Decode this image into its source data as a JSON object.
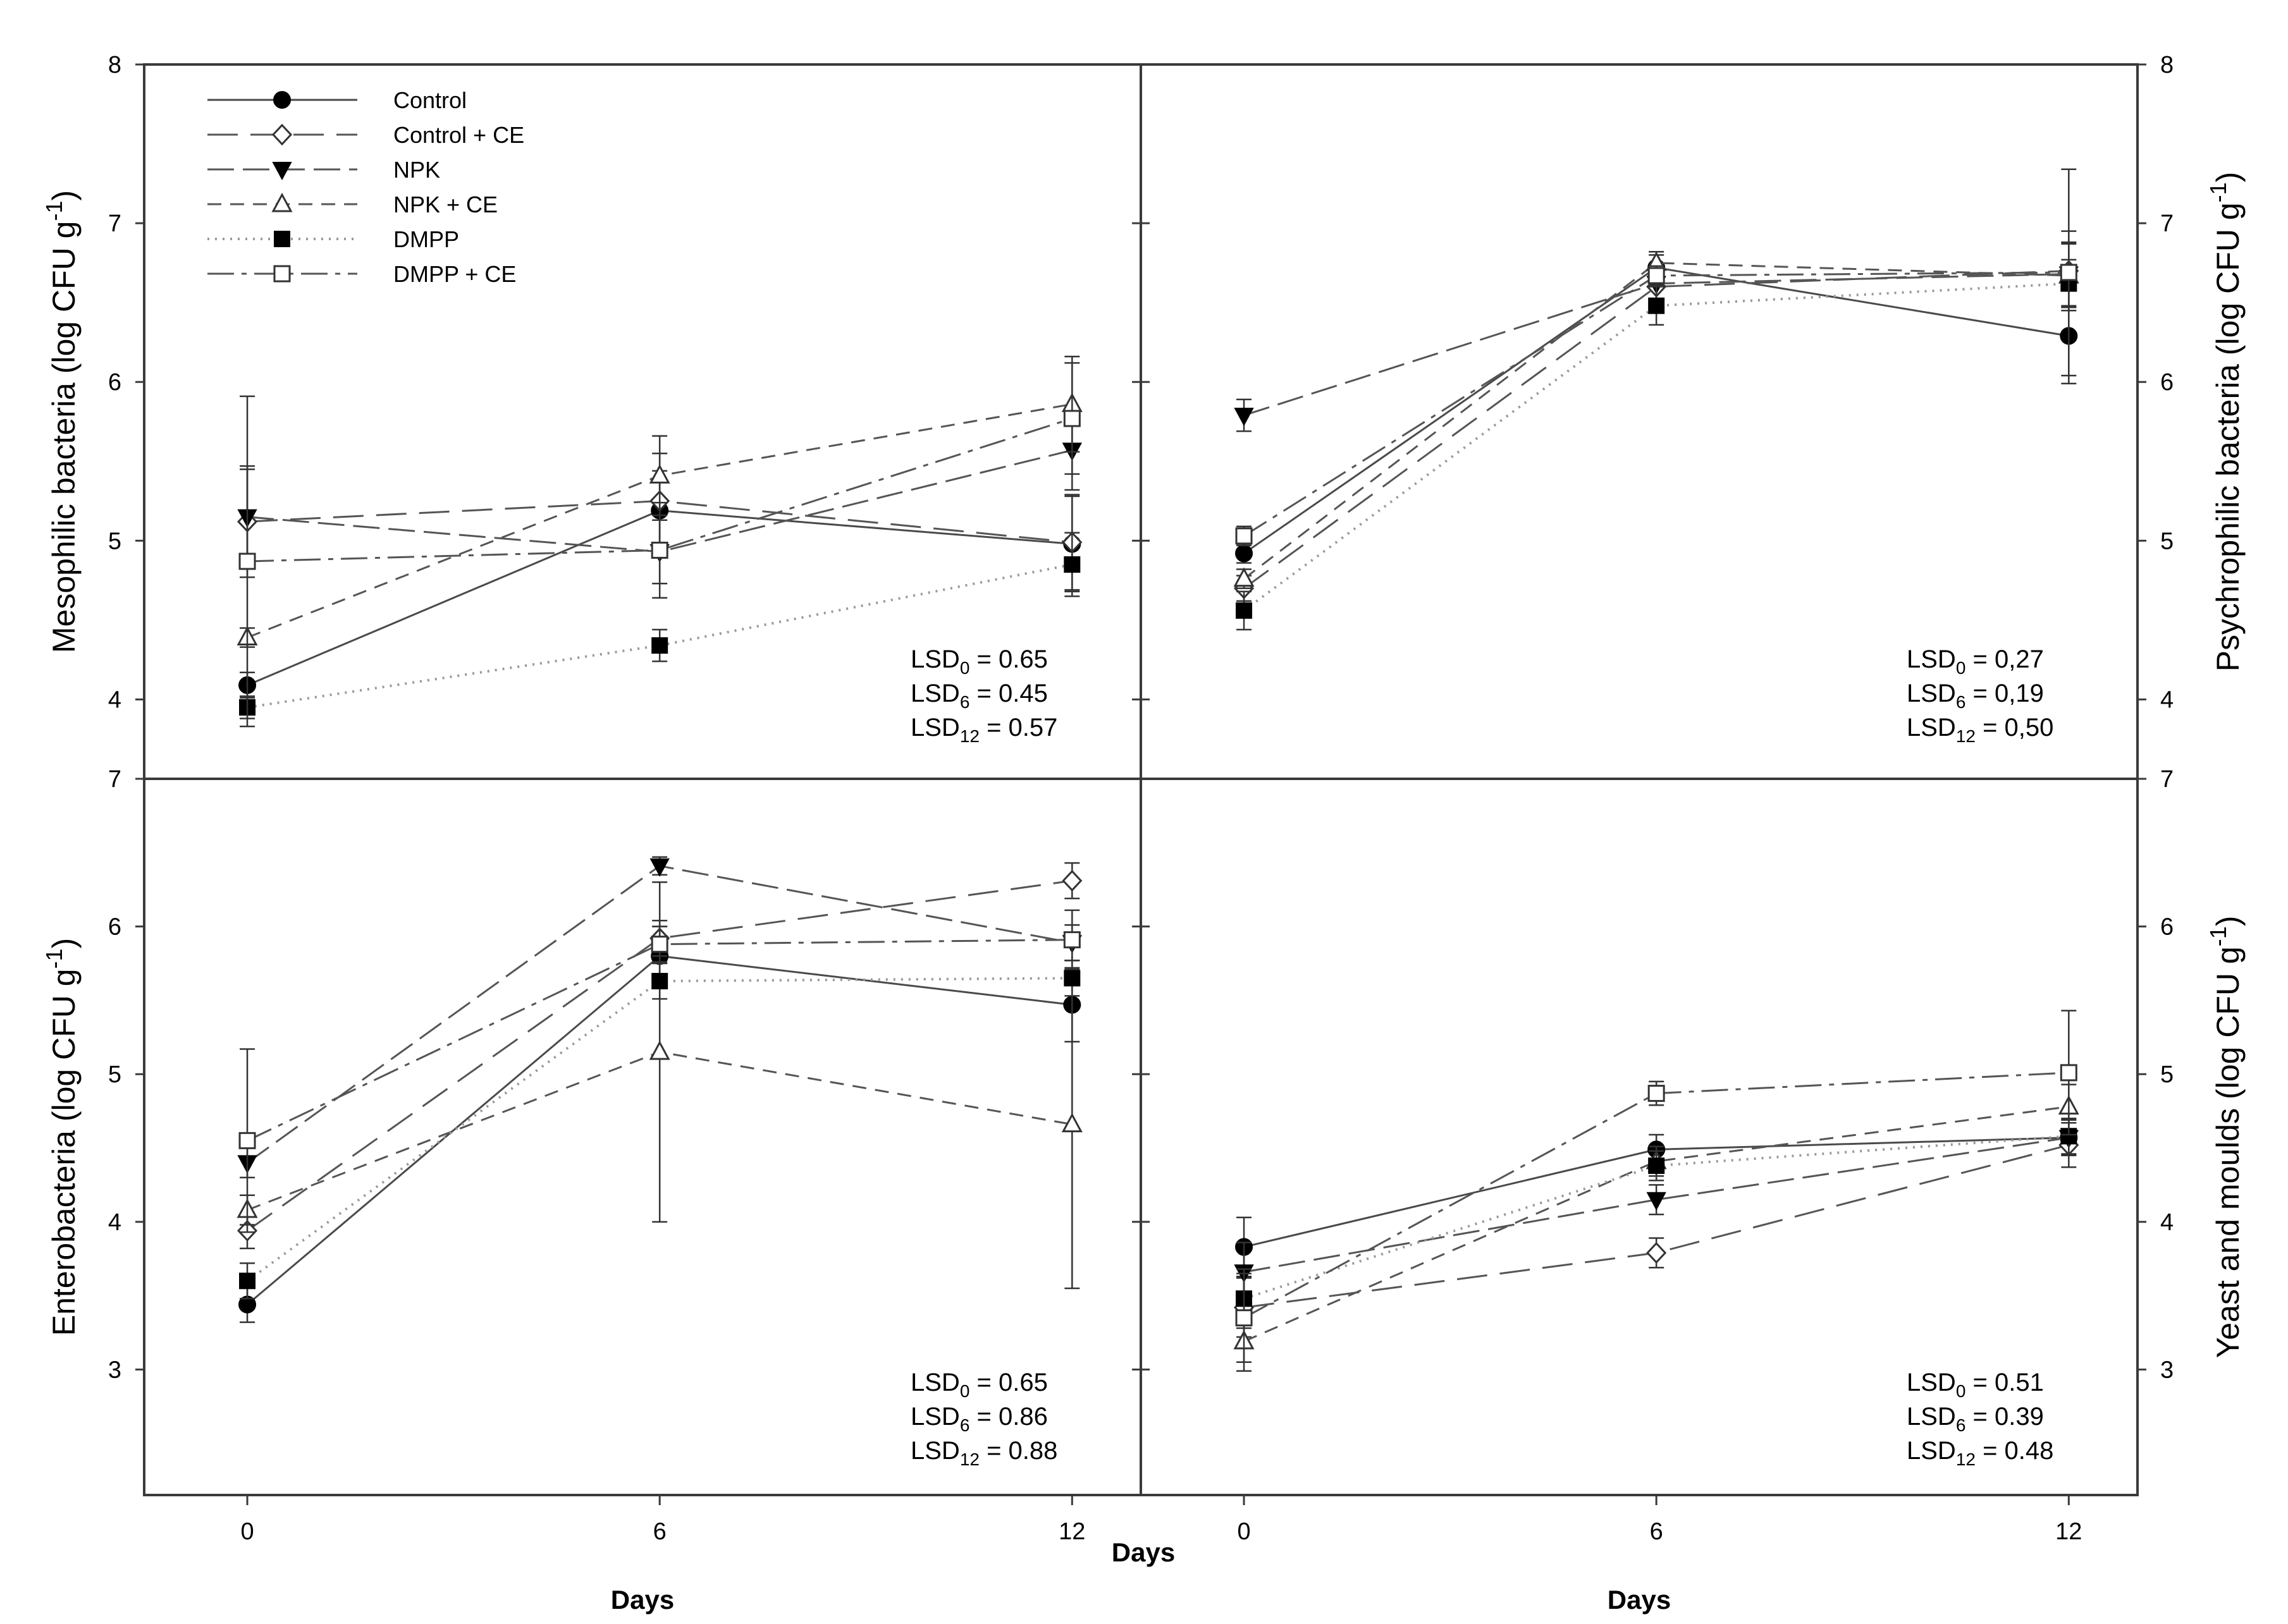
{
  "colors": {
    "ink": "#000000",
    "control": "#4a4a4a",
    "control_ce": "#555555",
    "npk": "#555555",
    "npk_ce": "#555555",
    "dmpp": "#999999",
    "dmpp_ce": "#555555"
  },
  "legend": [
    {
      "key": "control",
      "label": "Control",
      "marker": "circle-filled",
      "dash": ""
    },
    {
      "key": "control_ce",
      "label": "Control + CE",
      "marker": "diamond-open",
      "dash": "48,20"
    },
    {
      "key": "npk",
      "label": "NPK",
      "marker": "tri-down-filled",
      "dash": "42,14"
    },
    {
      "key": "npk_ce",
      "label": "NPK + CE",
      "marker": "tri-up-open",
      "dash": "22,14"
    },
    {
      "key": "dmpp",
      "label": "DMPP",
      "marker": "square-filled",
      "dash": "3,9"
    },
    {
      "key": "dmpp_ce",
      "label": "DMPP + CE",
      "marker": "square-open",
      "dash": "42,12,8,12"
    }
  ],
  "shared_x_title": "Days",
  "chart_data": [
    {
      "id": "mesophilic",
      "type": "line",
      "ylabel": "Mesophilic bacteria (log CFU g",
      "ylabel_sup": "-1",
      "ylabel_close": ")",
      "xlabel": "Days",
      "x": [
        0,
        6,
        12
      ],
      "xlim": [
        -1.5,
        13
      ],
      "ylim": [
        3.5,
        8
      ],
      "yticks": [
        4,
        5,
        6,
        7,
        8
      ],
      "series": [
        {
          "key": "control",
          "values": [
            4.09,
            5.19,
            4.98
          ],
          "err": [
            0.08,
            0.25,
            0.3
          ]
        },
        {
          "key": "control_ce",
          "values": [
            5.12,
            5.25,
            4.99
          ],
          "err": [
            0.35,
            0.3,
            0.3
          ]
        },
        {
          "key": "npk",
          "values": [
            5.15,
            4.93,
            5.57
          ],
          "err": [
            0.3,
            0.2,
            0.25
          ]
        },
        {
          "key": "npk_ce",
          "values": [
            4.39,
            5.41,
            5.86
          ],
          "err": [
            0.06,
            0.25,
            0.3
          ]
        },
        {
          "key": "dmpp",
          "values": [
            3.95,
            4.34,
            4.85
          ],
          "err": [
            0.07,
            0.1,
            0.2
          ]
        },
        {
          "key": "dmpp_ce",
          "values": [
            4.87,
            4.94,
            5.77
          ],
          "err": [
            1.04,
            0.3,
            0.35
          ]
        }
      ],
      "lsd": [
        {
          "sub": "0",
          "value": "= 0.65"
        },
        {
          "sub": "6",
          "value": "= 0.45"
        },
        {
          "sub": "12",
          "value": "= 0.57"
        }
      ]
    },
    {
      "id": "psychrophilic",
      "type": "line",
      "ylabel": "Psychrophilic bacteria (log CFU g",
      "ylabel_sup": "-1",
      "ylabel_close": ")",
      "xlabel": "Days",
      "x": [
        0,
        6,
        12
      ],
      "xlim": [
        -1.5,
        13
      ],
      "ylim": [
        3.5,
        8
      ],
      "yticks": [
        4,
        5,
        6,
        7,
        8
      ],
      "series": [
        {
          "key": "control",
          "values": [
            4.92,
            6.72,
            6.29
          ],
          "err": [
            0.06,
            0.08,
            0.3
          ]
        },
        {
          "key": "control_ce",
          "values": [
            4.7,
            6.6,
            6.7
          ],
          "err": [
            0.08,
            0.1,
            0.25
          ]
        },
        {
          "key": "npk",
          "values": [
            5.79,
            6.62,
            6.68
          ],
          "err": [
            0.1,
            0.1,
            0.2
          ]
        },
        {
          "key": "npk_ce",
          "values": [
            4.76,
            6.75,
            6.67
          ],
          "err": [
            0.06,
            0.07,
            0.2
          ]
        },
        {
          "key": "dmpp",
          "values": [
            4.56,
            6.48,
            6.62
          ],
          "err": [
            0.12,
            0.12,
            0.15
          ]
        },
        {
          "key": "dmpp_ce",
          "values": [
            5.03,
            6.67,
            6.69
          ],
          "err": [
            0.06,
            0.06,
            0.65
          ]
        }
      ],
      "lsd": [
        {
          "sub": "0",
          "value": "= 0,27"
        },
        {
          "sub": "6",
          "value": "= 0,19"
        },
        {
          "sub": "12",
          "value": "= 0,50"
        }
      ]
    },
    {
      "id": "enterobacteria",
      "type": "line",
      "ylabel": "Enterobacteria (log CFU g",
      "ylabel_sup": "-1",
      "ylabel_close": ")",
      "xlabel": "Days",
      "x": [
        0,
        6,
        12
      ],
      "xlim": [
        -1.5,
        13
      ],
      "ylim": [
        2.15,
        7
      ],
      "yticks": [
        3,
        4,
        5,
        6,
        7
      ],
      "series": [
        {
          "key": "control",
          "values": [
            3.44,
            5.8,
            5.47
          ],
          "err": [
            0.12,
            0.2,
            0.25
          ]
        },
        {
          "key": "control_ce",
          "values": [
            3.94,
            5.92,
            6.31
          ],
          "err": [
            0.12,
            0.12,
            0.12
          ]
        },
        {
          "key": "npk",
          "values": [
            4.4,
            6.41,
            5.89
          ],
          "err": [
            0.1,
            0.06,
            0.12
          ]
        },
        {
          "key": "npk_ce",
          "values": [
            4.08,
            5.15,
            4.66
          ],
          "err": [
            0.1,
            1.15,
            1.11
          ]
        },
        {
          "key": "dmpp",
          "values": [
            3.6,
            5.63,
            5.65
          ],
          "err": [
            0.12,
            0.12,
            0.12
          ]
        },
        {
          "key": "dmpp_ce",
          "values": [
            4.55,
            5.88,
            5.91
          ],
          "err": [
            0.62,
            0.12,
            0.2
          ]
        }
      ],
      "lsd": [
        {
          "sub": "0",
          "value": "= 0.65"
        },
        {
          "sub": "6",
          "value": "= 0.86"
        },
        {
          "sub": "12",
          "value": "= 0.88"
        }
      ]
    },
    {
      "id": "yeast",
      "type": "line",
      "ylabel": "Yeast and moulds (log CFU g",
      "ylabel_sup": "-1",
      "ylabel_close": ")",
      "xlabel": "Days",
      "x": [
        0,
        6,
        12
      ],
      "xlim": [
        -1.5,
        13
      ],
      "ylim": [
        2.15,
        7
      ],
      "yticks": [
        3,
        4,
        5,
        6,
        7
      ],
      "series": [
        {
          "key": "control",
          "values": [
            3.83,
            4.49,
            4.57
          ],
          "err": [
            0.2,
            0.1,
            0.12
          ]
        },
        {
          "key": "control_ce",
          "values": [
            3.42,
            3.79,
            4.52
          ],
          "err": [
            0.2,
            0.1,
            0.15
          ]
        },
        {
          "key": "npk",
          "values": [
            3.66,
            4.15,
            4.57
          ],
          "err": [
            0.2,
            0.1,
            0.12
          ]
        },
        {
          "key": "npk_ce",
          "values": [
            3.19,
            4.41,
            4.78
          ],
          "err": [
            0.2,
            0.1,
            0.15
          ]
        },
        {
          "key": "dmpp",
          "values": [
            3.48,
            4.38,
            4.58
          ],
          "err": [
            0.2,
            0.1,
            0.12
          ]
        },
        {
          "key": "dmpp_ce",
          "values": [
            3.35,
            4.87,
            5.01
          ],
          "err": [
            0.3,
            0.08,
            0.42
          ]
        }
      ],
      "lsd": [
        {
          "sub": "0",
          "value": "= 0.51"
        },
        {
          "sub": "6",
          "value": "= 0.39"
        },
        {
          "sub": "12",
          "value": "= 0.48"
        }
      ]
    }
  ]
}
